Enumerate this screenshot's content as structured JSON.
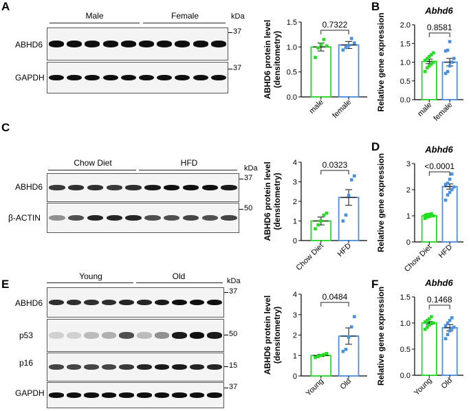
{
  "panel_labels": {
    "A": "A",
    "B": "B",
    "C": "C",
    "D": "D",
    "E": "E",
    "F": "F"
  },
  "blots": {
    "A": {
      "groups": [
        "Male",
        "Female"
      ],
      "kda": "kDa",
      "markers": [
        "37",
        "37"
      ],
      "rows": [
        {
          "label": "ABHD6",
          "lanes": [
            1,
            1,
            1,
            1,
            1,
            1,
            1,
            1,
            1,
            1
          ]
        },
        {
          "label": "GAPDH",
          "lanes": [
            1,
            1,
            1,
            1,
            1,
            1,
            1,
            1,
            1,
            1
          ]
        }
      ]
    },
    "C": {
      "groups": [
        "Chow Diet",
        "HFD"
      ],
      "kda": "kDa",
      "markers": [
        "37",
        "50"
      ],
      "rows": [
        {
          "label": "ABHD6",
          "lanes": [
            0.8,
            0.85,
            0.85,
            0.8,
            0.85,
            0.95,
            1,
            1,
            1,
            0.95
          ]
        },
        {
          "label": "β-ACTIN",
          "lanes": [
            0.4,
            0.7,
            0.9,
            0.9,
            0.9,
            0.7,
            0.7,
            0.75,
            0.7,
            0.75
          ]
        }
      ]
    },
    "E": {
      "groups": [
        "Young",
        "Old"
      ],
      "kda": "kDa",
      "markers": [
        "37",
        "50",
        "15",
        "37"
      ],
      "rows": [
        {
          "label": "ABHD6",
          "lanes": [
            0.85,
            0.85,
            0.85,
            0.85,
            0.9,
            0.9,
            0.95,
            1,
            1,
            1
          ]
        },
        {
          "label": "p53",
          "lanes": [
            0.1,
            0.1,
            0.2,
            0.25,
            0.7,
            0.2,
            0.4,
            0.95,
            1,
            0.95
          ]
        },
        {
          "label": "p16",
          "lanes": [
            0.75,
            0.75,
            0.75,
            0.75,
            0.8,
            0.9,
            0.95,
            0.95,
            0.9,
            0.9
          ]
        },
        {
          "label": "GAPDH",
          "lanes": [
            1,
            1,
            1,
            1,
            1,
            1,
            1,
            1,
            1,
            1
          ]
        }
      ]
    }
  },
  "colors": {
    "group1": "#22dd22",
    "group2": "#4a90e2",
    "axis": "#000000"
  },
  "chart_data": [
    {
      "id": "A",
      "type": "bar",
      "ylabel": "ABHD6 protein level\n(densitometry)",
      "title": "",
      "categories": [
        "male",
        "female"
      ],
      "values": [
        1.0,
        1.04
      ],
      "errors": [
        0.08,
        0.07
      ],
      "ylim": [
        0,
        1.5
      ],
      "yticks": [
        0.0,
        0.5,
        1.0,
        1.5
      ],
      "points": [
        [
          0.79,
          0.98,
          1.05,
          1.15,
          1.02
        ],
        [
          0.94,
          0.99,
          1.03,
          1.17,
          1.08
        ]
      ],
      "pvalue": "0.7322"
    },
    {
      "id": "B",
      "type": "bar",
      "ylabel": "Relative gene expression",
      "title": "Abhd6",
      "categories": [
        "male",
        "female"
      ],
      "values": [
        1.02,
        1.0
      ],
      "errors": [
        0.06,
        0.1
      ],
      "ylim": [
        0,
        2.0
      ],
      "yticks": [
        0.0,
        0.5,
        1.0,
        1.5,
        2.0
      ],
      "points": [
        [
          0.75,
          0.85,
          0.9,
          0.95,
          1.0,
          1.05,
          1.1,
          1.15,
          1.2,
          1.25
        ],
        [
          0.7,
          0.75,
          0.9,
          1.0,
          1.1,
          1.3,
          1.32,
          1.55
        ]
      ],
      "pvalue": "0.8581"
    },
    {
      "id": "C",
      "type": "bar",
      "ylabel": "ABHD6 protein level\n(densitometry)",
      "title": "",
      "categories": [
        "Chow Diet",
        "HFD"
      ],
      "values": [
        1.0,
        2.2
      ],
      "errors": [
        0.2,
        0.4
      ],
      "ylim": [
        0,
        4
      ],
      "yticks": [
        0,
        1,
        2,
        3,
        4
      ],
      "points": [
        [
          0.6,
          0.8,
          1.0,
          1.3,
          1.4
        ],
        [
          1.0,
          1.3,
          2.3,
          3.1,
          3.3
        ]
      ],
      "pvalue": "0.0323"
    },
    {
      "id": "D",
      "type": "bar",
      "ylabel": "Relative gene expression",
      "title": "Abhd6",
      "categories": [
        "Chow Diet",
        "HFD"
      ],
      "values": [
        1.0,
        2.12
      ],
      "errors": [
        0.04,
        0.1
      ],
      "ylim": [
        0,
        3
      ],
      "yticks": [
        0,
        1,
        2,
        3
      ],
      "points": [
        [
          0.9,
          0.95,
          0.97,
          1.0,
          1.0,
          1.02,
          1.05,
          1.05,
          1.08
        ],
        [
          1.6,
          1.8,
          1.9,
          2.0,
          2.1,
          2.2,
          2.25,
          2.4,
          2.6
        ]
      ],
      "pvalue": "<0.0001"
    },
    {
      "id": "E",
      "type": "bar",
      "ylabel": "ABHD6 protein level\n(densitometry)",
      "title": "",
      "categories": [
        "Young",
        "Old"
      ],
      "values": [
        1.0,
        1.95
      ],
      "errors": [
        0.05,
        0.4
      ],
      "ylim": [
        0,
        4
      ],
      "yticks": [
        0,
        1,
        2,
        3,
        4
      ],
      "points": [
        [
          0.9,
          0.95,
          1.0,
          1.05,
          1.1
        ],
        [
          1.2,
          1.3,
          1.9,
          2.4,
          2.9
        ]
      ],
      "pvalue": "0.0484"
    },
    {
      "id": "F",
      "type": "bar",
      "ylabel": "Relative gene expression",
      "title": "Abhd6",
      "categories": [
        "Young",
        "Old"
      ],
      "values": [
        1.0,
        0.91
      ],
      "errors": [
        0.03,
        0.06
      ],
      "ylim": [
        0,
        1.5
      ],
      "yticks": [
        0.0,
        0.5,
        1.0,
        1.5
      ],
      "points": [
        [
          0.88,
          0.92,
          0.96,
          1.0,
          1.0,
          1.02,
          1.05,
          1.08,
          1.12
        ],
        [
          0.7,
          0.78,
          0.85,
          0.9,
          0.92,
          0.95,
          1.0,
          1.05,
          1.1
        ]
      ],
      "pvalue": "0.1468"
    }
  ]
}
